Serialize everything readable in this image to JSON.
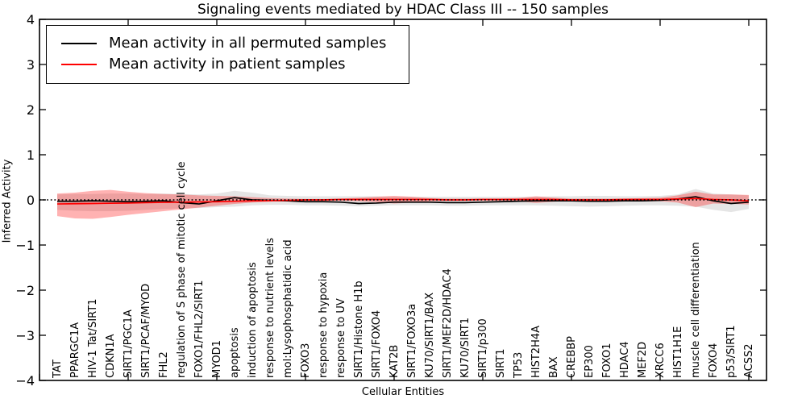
{
  "chart_data": {
    "type": "line",
    "title": "Signaling events mediated by HDAC Class III -- 150 samples",
    "xlabel": "Cellular Entities",
    "ylabel": "Inferred Activity",
    "ylim": [
      -4,
      4
    ],
    "yticks": [
      -4,
      -3,
      -2,
      -1,
      0,
      1,
      2,
      3,
      4
    ],
    "xtick_interval": 5,
    "grid": false,
    "legend_position": "upper left",
    "zero_line_style": "dotted",
    "categories": [
      "TAT",
      "PPARGC1A",
      "HIV-1 Tat/SIRT1",
      "CDKN1A",
      "SIRT1/PGC1A",
      "SIRT1/PCAF/MYOD",
      "FHL2",
      "regulation of S phase of mitotic cell cycle",
      "FOXO1/FHL2/SIRT1",
      "MYOD1",
      "apoptosis",
      "induction of apoptosis",
      "response to nutrient levels",
      "mol:Lysophosphatidic acid",
      "FOXO3",
      "response to hypoxia",
      "response to UV",
      "SIRT1/Histone H1b",
      "SIRT1/FOXO4",
      "KAT2B",
      "SIRT1/FOXO3a",
      "KU70/SIRT1/BAX",
      "SIRT1/MEF2D/HDAC4",
      "KU70/SIRT1",
      "SIRT1/p300",
      "SIRT1",
      "TP53",
      "HIST2H4A",
      "BAX",
      "CREBBP",
      "EP300",
      "FOXO1",
      "HDAC4",
      "MEF2D",
      "XRCC6",
      "HIST1H1E",
      "muscle cell differentiation",
      "FOXO4",
      "p53/SIRT1",
      "ACSS2"
    ],
    "series": [
      {
        "name": "Mean activity in all permuted samples",
        "color": "#000000",
        "band_fill": "rgba(0,0,0,0.10)",
        "values": [
          -0.03,
          -0.03,
          -0.02,
          -0.03,
          -0.04,
          -0.03,
          -0.02,
          -0.06,
          -0.09,
          -0.02,
          0.05,
          0,
          -0.01,
          -0.02,
          -0.04,
          -0.04,
          -0.05,
          -0.08,
          -0.07,
          -0.05,
          -0.05,
          -0.05,
          -0.06,
          -0.06,
          -0.05,
          -0.04,
          -0.03,
          -0.02,
          -0.02,
          -0.02,
          -0.03,
          -0.03,
          -0.02,
          -0.02,
          -0.01,
          0.02,
          0.07,
          -0.02,
          -0.08,
          -0.05
        ],
        "band_upper": [
          0.12,
          0.13,
          0.13,
          0.14,
          0.14,
          0.13,
          0.14,
          0.13,
          0.12,
          0.14,
          0.2,
          0.16,
          0.1,
          0.09,
          0.08,
          0.08,
          0.08,
          0.08,
          0.08,
          0.07,
          0.07,
          0.07,
          0.07,
          0.07,
          0.07,
          0.07,
          0.07,
          0.07,
          0.08,
          0.08,
          0.09,
          0.09,
          0.08,
          0.08,
          0.09,
          0.12,
          0.24,
          0.14,
          0.12,
          0.1
        ],
        "band_lower": [
          -0.22,
          -0.24,
          -0.25,
          -0.25,
          -0.24,
          -0.22,
          -0.2,
          -0.19,
          -0.18,
          -0.16,
          -0.15,
          -0.12,
          -0.11,
          -0.11,
          -0.12,
          -0.12,
          -0.13,
          -0.14,
          -0.13,
          -0.12,
          -0.12,
          -0.12,
          -0.13,
          -0.13,
          -0.12,
          -0.12,
          -0.12,
          -0.12,
          -0.13,
          -0.14,
          -0.15,
          -0.14,
          -0.13,
          -0.12,
          -0.12,
          -0.13,
          -0.15,
          -0.22,
          -0.27,
          -0.2
        ]
      },
      {
        "name": "Mean activity in patient samples",
        "color": "#ff0000",
        "band_fill": "rgba(255,0,0,0.30)",
        "values": [
          -0.09,
          -0.085,
          -0.08,
          -0.075,
          -0.07,
          -0.06,
          -0.055,
          -0.05,
          -0.045,
          -0.04,
          -0.03,
          -0.02,
          -0.015,
          -0.01,
          0,
          0,
          0.01,
          0.01,
          0.01,
          0.01,
          0.01,
          0.01,
          0,
          0,
          0.01,
          0.01,
          0.01,
          0.01,
          0.01,
          0,
          0,
          0,
          0.01,
          0.01,
          0.01,
          0.02,
          0.03,
          0.01,
          0,
          -0.02
        ],
        "band_upper": [
          0.14,
          0.16,
          0.2,
          0.22,
          0.18,
          0.15,
          0.13,
          0.12,
          0.1,
          0.09,
          0.08,
          0.06,
          0.04,
          0.03,
          0.02,
          0.02,
          0.03,
          0.05,
          0.07,
          0.09,
          0.07,
          0.04,
          0.03,
          0.03,
          0.03,
          0.03,
          0.04,
          0.08,
          0.05,
          0.03,
          0.03,
          0.03,
          0.03,
          0.04,
          0.05,
          0.1,
          0.18,
          0.12,
          0.12,
          0.11
        ],
        "band_lower": [
          -0.36,
          -0.41,
          -0.42,
          -0.38,
          -0.33,
          -0.29,
          -0.25,
          -0.21,
          -0.17,
          -0.13,
          -0.09,
          -0.06,
          -0.04,
          -0.03,
          -0.02,
          -0.02,
          -0.02,
          -0.03,
          -0.05,
          -0.08,
          -0.06,
          -0.03,
          -0.02,
          -0.02,
          -0.02,
          -0.02,
          -0.03,
          -0.07,
          -0.04,
          -0.02,
          -0.02,
          -0.02,
          -0.02,
          -0.03,
          -0.03,
          -0.06,
          -0.16,
          -0.08,
          -0.09,
          -0.1
        ]
      }
    ]
  }
}
